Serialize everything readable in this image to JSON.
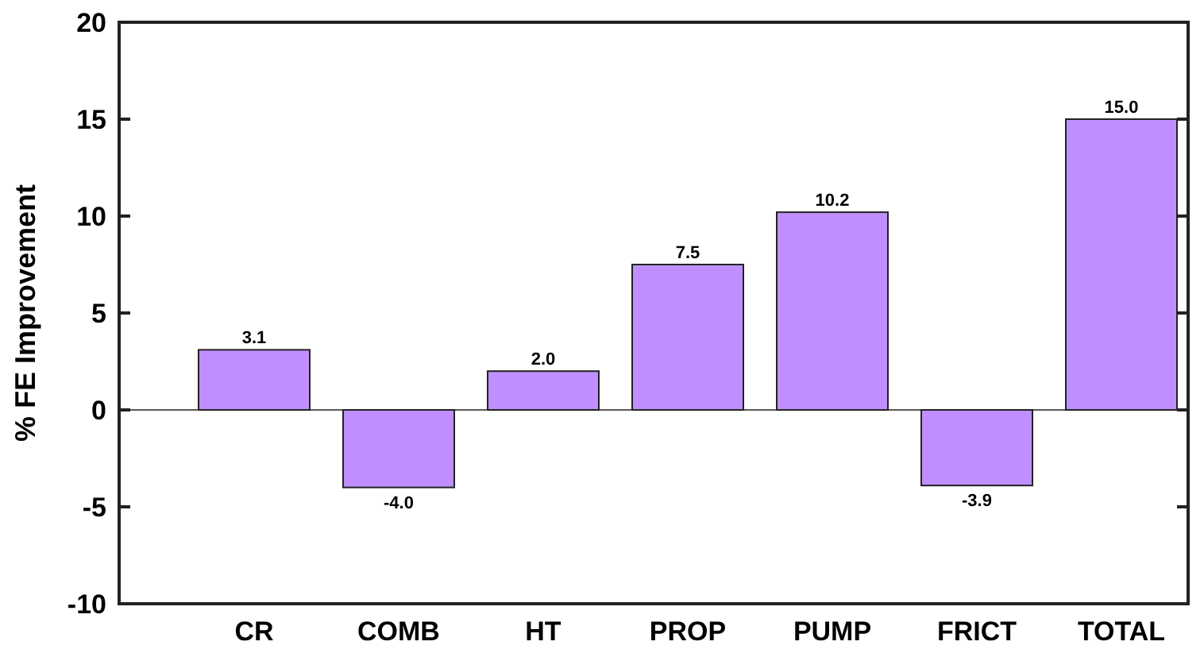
{
  "chart_data": {
    "type": "bar",
    "ylabel": "% FE Improvement",
    "categories": [
      "CR",
      "COMB",
      "HT",
      "PROP",
      "PUMP",
      "FRICT",
      "TOTAL"
    ],
    "values": [
      3.1,
      -4.0,
      2.0,
      7.5,
      10.2,
      -3.9,
      15.0
    ],
    "value_labels": [
      "3.1",
      "-4.0",
      "2.0",
      "7.5",
      "10.2",
      "-3.9",
      "15.0"
    ],
    "color": "#bf8fff",
    "ylim": [
      -10,
      20
    ],
    "yticks": [
      -10,
      -5,
      0,
      5,
      10,
      15,
      20
    ],
    "ref_lines": [
      {
        "axis": "y",
        "value": 0,
        "label": null
      }
    ]
  }
}
